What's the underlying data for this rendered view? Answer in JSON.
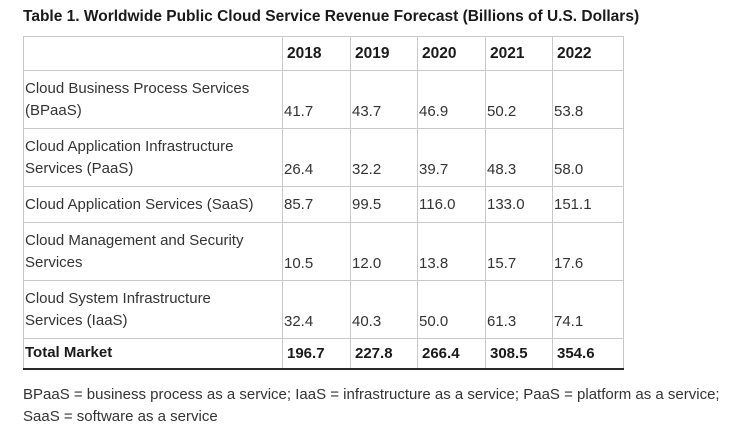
{
  "title": "Table 1. Worldwide Public Cloud Service Revenue Forecast (Billions of U.S. Dollars)",
  "table": {
    "years": [
      "2018",
      "2019",
      "2020",
      "2021",
      "2022"
    ],
    "rows": [
      {
        "label_line1": "Cloud Business Process Services",
        "label_line2": "(BPaaS)",
        "values": [
          "41.7",
          "43.7",
          "46.9",
          "50.2",
          "53.8"
        ]
      },
      {
        "label_line1": "Cloud Application Infrastructure",
        "label_line2": "Services (PaaS)",
        "values": [
          "26.4",
          "32.2",
          "39.7",
          "48.3",
          "58.0"
        ]
      },
      {
        "label_line1": "Cloud Application Services (SaaS)",
        "label_line2": "",
        "values": [
          "85.7",
          "99.5",
          "116.0",
          "133.0",
          "151.1"
        ]
      },
      {
        "label_line1": "Cloud Management and Security",
        "label_line2": "Services",
        "values": [
          "10.5",
          "12.0",
          "13.8",
          "15.7",
          "17.6"
        ]
      },
      {
        "label_line1": "Cloud System Infrastructure",
        "label_line2": "Services (IaaS)",
        "values": [
          "32.4",
          "40.3",
          "50.0",
          "61.3",
          "74.1"
        ]
      }
    ],
    "total": {
      "label": "Total Market",
      "values": [
        "196.7",
        "227.8",
        "266.4",
        "308.5",
        "354.6"
      ]
    }
  },
  "footnote": "BPaaS = business process as a service; IaaS = infrastructure as a service; PaaS = platform as a service; SaaS = software as a service"
}
